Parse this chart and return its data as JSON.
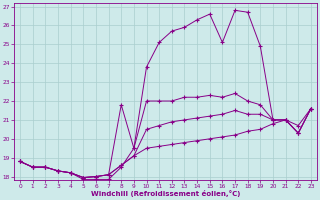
{
  "xlabel": "Windchill (Refroidissement éolien,°C)",
  "xlim": [
    -0.5,
    23.5
  ],
  "ylim": [
    17.8,
    27.2
  ],
  "xticks": [
    0,
    1,
    2,
    3,
    4,
    5,
    6,
    7,
    8,
    9,
    10,
    11,
    12,
    13,
    14,
    15,
    16,
    17,
    18,
    19,
    20,
    21,
    22,
    23
  ],
  "yticks": [
    18,
    19,
    20,
    21,
    22,
    23,
    24,
    25,
    26,
    27
  ],
  "background_color": "#ceeaea",
  "grid_color": "#aacece",
  "line_color": "#880088",
  "curves": [
    {
      "x": [
        0,
        1,
        2,
        3,
        4,
        5,
        6,
        7,
        8,
        9,
        10,
        11,
        12,
        13,
        14,
        15,
        16,
        17,
        18,
        19,
        20,
        21,
        22,
        23
      ],
      "y": [
        18.8,
        18.5,
        18.5,
        18.3,
        18.2,
        17.95,
        18.0,
        18.1,
        18.6,
        19.1,
        19.5,
        19.6,
        19.7,
        19.8,
        19.9,
        20.0,
        20.1,
        20.2,
        20.4,
        20.5,
        20.8,
        21.0,
        20.7,
        21.6
      ]
    },
    {
      "x": [
        0,
        1,
        2,
        3,
        4,
        5,
        6,
        7,
        8,
        9,
        10,
        11,
        12,
        13,
        14,
        15,
        16,
        17,
        18,
        19,
        20,
        21,
        22,
        23
      ],
      "y": [
        18.8,
        18.5,
        18.5,
        18.3,
        18.2,
        17.95,
        18.0,
        18.1,
        18.6,
        19.1,
        20.5,
        20.7,
        20.9,
        21.0,
        21.1,
        21.2,
        21.3,
        21.5,
        21.3,
        21.3,
        21.0,
        21.0,
        20.3,
        21.6
      ]
    },
    {
      "x": [
        0,
        1,
        2,
        3,
        4,
        5,
        6,
        7,
        8,
        9,
        10,
        11,
        12,
        13,
        14,
        15,
        16,
        17,
        18,
        19,
        20,
        21,
        22,
        23
      ],
      "y": [
        18.8,
        18.5,
        18.5,
        18.3,
        18.2,
        17.95,
        18.0,
        18.1,
        21.8,
        19.5,
        22.0,
        22.0,
        22.0,
        22.2,
        22.2,
        22.3,
        22.2,
        22.4,
        22.0,
        21.8,
        21.0,
        21.0,
        20.3,
        21.6
      ]
    },
    {
      "x": [
        0,
        1,
        2,
        3,
        4,
        5,
        6,
        7,
        8,
        9,
        10,
        11,
        12,
        13,
        14,
        15,
        16,
        17,
        18,
        19,
        20,
        21,
        22,
        23
      ],
      "y": [
        18.8,
        18.5,
        18.5,
        18.3,
        18.2,
        17.85,
        17.85,
        17.85,
        18.5,
        19.5,
        23.8,
        25.1,
        25.7,
        25.9,
        26.3,
        26.6,
        25.1,
        26.8,
        26.7,
        24.9,
        21.0,
        21.0,
        20.3,
        21.6
      ]
    }
  ]
}
